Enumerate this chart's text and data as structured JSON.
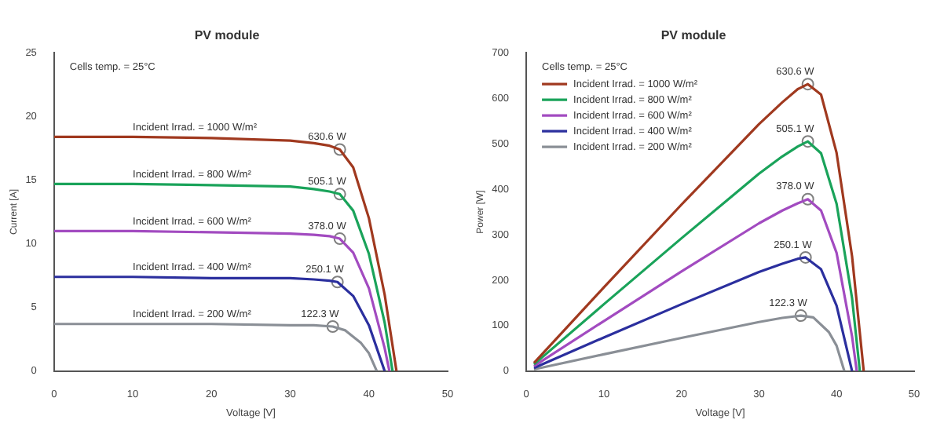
{
  "chart_data": [
    {
      "type": "line",
      "title": "PV module",
      "xlabel": "Voltage [V]",
      "ylabel": "Current [A]",
      "xlim": [
        0,
        50
      ],
      "xticks": [
        0,
        10,
        20,
        30,
        40,
        50
      ],
      "ylim": [
        0,
        25
      ],
      "yticks": [
        0,
        5,
        10,
        15,
        20,
        25
      ],
      "grid": false,
      "legend": false,
      "marker": "none",
      "line_style": "solid",
      "annotations": [
        "Cells temp. = 25°C",
        {
          "text": "630.6 W",
          "x": 36.3,
          "y": 17.4
        },
        {
          "text": "505.1 W",
          "x": 36.3,
          "y": 13.9
        },
        {
          "text": "378.0 W",
          "x": 36.3,
          "y": 10.4
        },
        {
          "text": "250.1 W",
          "x": 36.0,
          "y": 7.0
        },
        {
          "text": "122.3 W",
          "x": 35.4,
          "y": 3.5
        }
      ],
      "series": [
        {
          "name": "Incident Irrad. = 1000 W/m²",
          "color": "#a0391f",
          "x": [
            0,
            10,
            20,
            30,
            33,
            35,
            36.3,
            38,
            40,
            42,
            43.5
          ],
          "values": [
            18.4,
            18.4,
            18.3,
            18.1,
            17.9,
            17.7,
            17.4,
            16.0,
            12.0,
            6.0,
            0
          ]
        },
        {
          "name": "Incident Irrad. = 800 W/m²",
          "color": "#1aa35a",
          "x": [
            0,
            10,
            20,
            30,
            33,
            35,
            36.3,
            38,
            40,
            42,
            43
          ],
          "values": [
            14.7,
            14.7,
            14.6,
            14.5,
            14.3,
            14.1,
            13.9,
            12.6,
            9.2,
            3.8,
            0
          ]
        },
        {
          "name": "Incident Irrad. = 600 W/m²",
          "color": "#a24bc0",
          "x": [
            0,
            10,
            20,
            30,
            33,
            35,
            36.3,
            38,
            40,
            42,
            42.6
          ],
          "values": [
            11.0,
            11.0,
            10.9,
            10.8,
            10.7,
            10.6,
            10.4,
            9.3,
            6.5,
            1.8,
            0
          ]
        },
        {
          "name": "Incident Irrad. = 400 W/m²",
          "color": "#2b2f9e",
          "x": [
            0,
            10,
            20,
            30,
            33,
            35,
            36,
            38,
            40,
            42
          ],
          "values": [
            7.4,
            7.4,
            7.3,
            7.3,
            7.2,
            7.1,
            7.0,
            5.9,
            3.6,
            0
          ]
        },
        {
          "name": "Incident Irrad. = 200 W/m²",
          "color": "#8a8f96",
          "x": [
            0,
            10,
            20,
            30,
            33,
            35.4,
            37,
            39,
            40,
            41
          ],
          "values": [
            3.7,
            3.7,
            3.7,
            3.6,
            3.6,
            3.5,
            3.2,
            2.2,
            1.4,
            0
          ]
        },
        {
          "type": "scatter",
          "color": "#808080",
          "marker": "circle",
          "x": [
            36.3,
            36.3,
            36.3,
            36.0,
            35.4
          ],
          "values": [
            17.4,
            13.9,
            10.4,
            7.0,
            3.5
          ]
        }
      ]
    },
    {
      "type": "line",
      "title": "PV module",
      "xlabel": "Voltage [V]",
      "ylabel": "Power [W]",
      "xlim": [
        0,
        50
      ],
      "xticks": [
        0,
        10,
        20,
        30,
        40,
        50
      ],
      "ylim": [
        0,
        700
      ],
      "yticks": [
        0,
        100,
        200,
        300,
        400,
        500,
        600,
        700
      ],
      "grid": false,
      "legend": "top left",
      "marker": "none",
      "line_style": "solid",
      "annotations": [
        "Cells temp. = 25°C",
        {
          "text": "630.6 W",
          "x": 36.3,
          "y": 631
        },
        {
          "text": "505.1 W",
          "x": 36.3,
          "y": 505
        },
        {
          "text": "378.0 W",
          "x": 36.3,
          "y": 378
        },
        {
          "text": "250.1 W",
          "x": 36.0,
          "y": 250
        },
        {
          "text": "122.3 W",
          "x": 35.4,
          "y": 122
        }
      ],
      "series": [
        {
          "name": "Incident Irrad. = 1000 W/m²",
          "color": "#a0391f",
          "x": [
            1,
            10,
            20,
            30,
            33,
            35,
            36.3,
            38,
            40,
            42,
            43.5
          ],
          "values": [
            18,
            184,
            366,
            543,
            591,
            620,
            631,
            608,
            480,
            252,
            0
          ]
        },
        {
          "name": "Incident Irrad. = 800 W/m²",
          "color": "#1aa35a",
          "x": [
            1,
            10,
            20,
            30,
            33,
            35,
            36.3,
            38,
            40,
            42,
            43
          ],
          "values": [
            15,
            147,
            292,
            434,
            472,
            494,
            505,
            479,
            368,
            160,
            0
          ]
        },
        {
          "name": "Incident Irrad. = 600 W/m²",
          "color": "#a24bc0",
          "x": [
            1,
            10,
            20,
            30,
            33,
            35,
            36.3,
            38,
            40,
            42,
            42.6
          ],
          "values": [
            11,
            110,
            219,
            325,
            353,
            369,
            378,
            353,
            260,
            76,
            0
          ]
        },
        {
          "name": "Incident Irrad. = 400 W/m²",
          "color": "#2b2f9e",
          "x": [
            1,
            10,
            20,
            30,
            33,
            35,
            36,
            38,
            40,
            42
          ],
          "values": [
            7,
            74,
            147,
            218,
            236,
            247,
            250,
            224,
            144,
            0
          ]
        },
        {
          "name": "Incident Irrad. = 200 W/m²",
          "color": "#8a8f96",
          "x": [
            1,
            10,
            20,
            30,
            33,
            35.4,
            37,
            39,
            40,
            41
          ],
          "values": [
            4,
            37,
            73,
            108,
            117,
            122,
            118,
            86,
            56,
            0
          ]
        },
        {
          "type": "scatter",
          "color": "#808080",
          "marker": "circle",
          "x": [
            36.3,
            36.3,
            36.3,
            36.0,
            35.4
          ],
          "values": [
            631,
            505,
            378,
            250,
            122
          ]
        }
      ]
    }
  ]
}
